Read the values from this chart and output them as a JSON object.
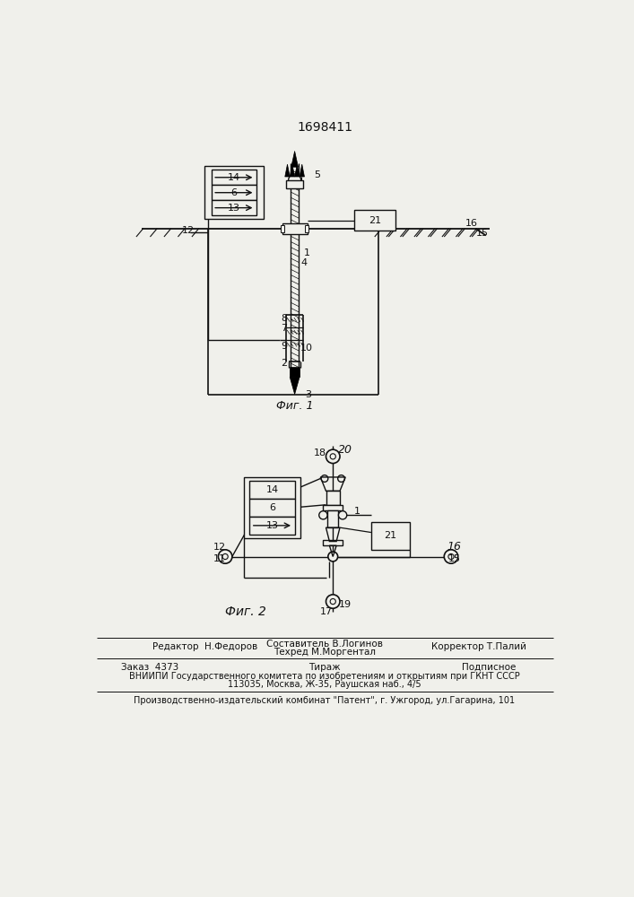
{
  "patent_number": "1698411",
  "fig1_label": "Фиг. 1",
  "fig2_label": "Фиг. 2",
  "footer_line1_left": "Редактор  Н.Федоров",
  "footer_line1_center_top": "Составитель В.Логинов",
  "footer_line1_center_bot": "Техред М.Моргентал",
  "footer_line1_right": "Корректор Т.Палий",
  "footer_line2_left": "Заказ  4373",
  "footer_line2_center": "Тираж",
  "footer_line2_right": "Подписное",
  "footer_line3": "ВНИИПИ Государственного комитета по изобретениям и открытиям при ГКНТ СССР",
  "footer_line4": "113035, Москва, Ж-35, Раушская наб., 4/5",
  "footer_line5": "Производственно-издательский комбинат \"Патент\", г. Ужгород, ул.Гагарина, 101",
  "bg_color": "#f0f0eb",
  "line_color": "#111111",
  "text_color": "#111111"
}
